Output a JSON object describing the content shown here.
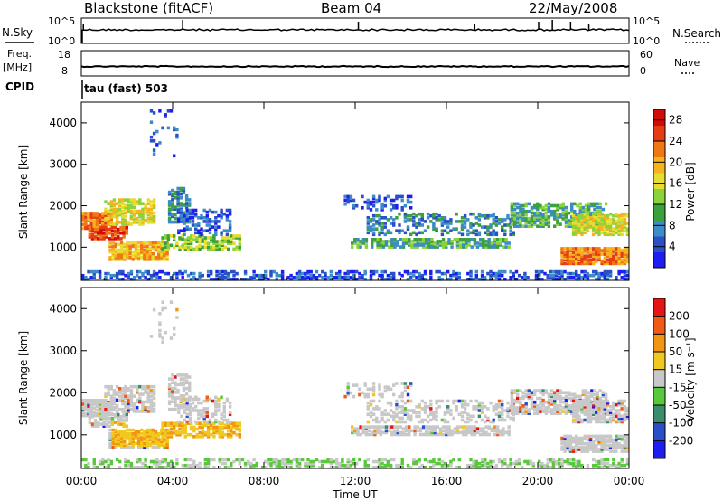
{
  "header": {
    "station": "Blackstone (fitACF)",
    "beam": "Beam 04",
    "date": "22/May/2008"
  },
  "top_panels": {
    "nsky_label": "N.Sky",
    "nsky_ticks": [
      "10^5",
      "10^0"
    ],
    "nsearch_label": "N.Search",
    "nsearch_ticks": [
      "10^5",
      "10^0"
    ],
    "freq_label": "Freq.",
    "freq_unit": "[MHz]",
    "freq_ticks": [
      "18",
      "8"
    ],
    "nave_label": "Nave",
    "nave_ticks": [
      "60",
      "0"
    ],
    "cpid_label": "CPID",
    "cpid_text": "tau (fast) 503"
  },
  "chart_data": [
    {
      "type": "heatmap",
      "name": "power",
      "ylabel": "Slant Range [km]",
      "yticks": [
        1000,
        2000,
        3000,
        4000
      ],
      "ylim": [
        200,
        4500
      ],
      "xticks": [
        "00:00",
        "04:00",
        "08:00",
        "12:00",
        "16:00",
        "20:00",
        "00:00"
      ],
      "xlim_hours": [
        0,
        24
      ],
      "colorbar": {
        "label": "Power [dB]",
        "ticks": [
          4,
          8,
          12,
          16,
          20,
          24,
          28
        ],
        "range": [
          0,
          30
        ],
        "colors": [
          "#1e1ef0",
          "#2a50c8",
          "#3c8cc8",
          "#3ca03c",
          "#8cd23c",
          "#e6dc32",
          "#f5b41e",
          "#f07814",
          "#e63c14",
          "#d20a0a"
        ]
      }
    },
    {
      "type": "heatmap",
      "name": "velocity",
      "ylabel": "Slant Range [km]",
      "yticks": [
        1000,
        2000,
        3000,
        4000
      ],
      "ylim": [
        200,
        4500
      ],
      "xticks": [
        "00:00",
        "04:00",
        "08:00",
        "12:00",
        "16:00",
        "20:00",
        "00:00"
      ],
      "xlim_hours": [
        0,
        24
      ],
      "xlabel": "Time UT",
      "colorbar": {
        "label": "Velocity [m s⁻¹]",
        "ticks": [
          "200",
          "100",
          "50",
          "15",
          "-15",
          "-50",
          "-100",
          "-200"
        ],
        "colors": [
          "#1e1ef0",
          "#2a50c8",
          "#3c8c6e",
          "#5ac83c",
          "#c8c8c8",
          "#f0c81e",
          "#f09614",
          "#f05a14",
          "#e61414"
        ]
      }
    }
  ],
  "colors": {
    "ground_scatter": "#c8c8c8"
  }
}
